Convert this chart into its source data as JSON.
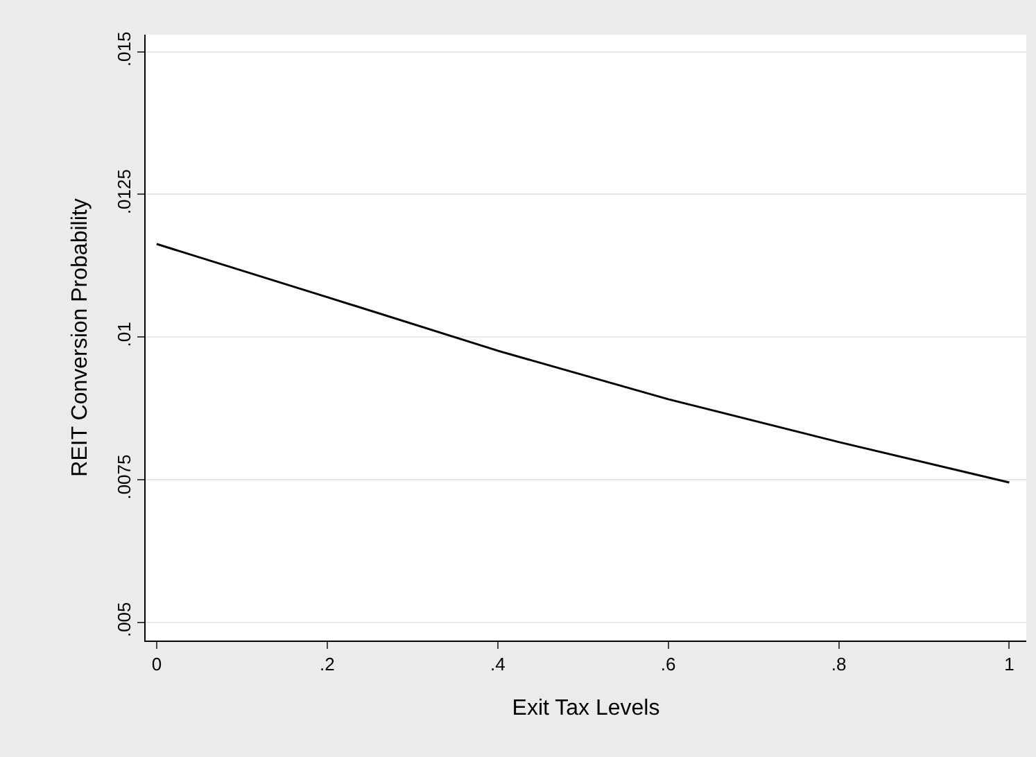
{
  "chart_data": {
    "type": "line",
    "xlabel": "Exit Tax Levels",
    "ylabel": "REIT Conversion Probability",
    "x": [
      0,
      0.2,
      0.4,
      0.6,
      0.8,
      1
    ],
    "series": [
      {
        "color": "#000000",
        "values": [
          0.01163,
          0.0107,
          0.00976,
          0.00891,
          0.00816,
          0.00745
        ]
      }
    ],
    "xlim": [
      -0.013,
      1.02
    ],
    "ylim": [
      0.00468,
      0.0153
    ],
    "xticks": [
      0,
      {
        "value": 0.2,
        "label": ".2"
      },
      {
        "value": 0.4,
        "label": ".4"
      },
      {
        "value": 0.6,
        "label": ".6"
      },
      {
        "value": 0.8,
        "label": ".8"
      },
      1
    ],
    "yticks": [
      {
        "value": 0.005,
        "label": ".005"
      },
      {
        "value": 0.0075,
        "label": ".0075"
      },
      {
        "value": 0.01,
        "label": ".01"
      },
      {
        "value": 0.0125,
        "label": ".0125"
      },
      {
        "value": 0.015,
        "label": ".015"
      }
    ],
    "grid": "y",
    "legend": false,
    "marker": "none",
    "line_style": "solid"
  }
}
